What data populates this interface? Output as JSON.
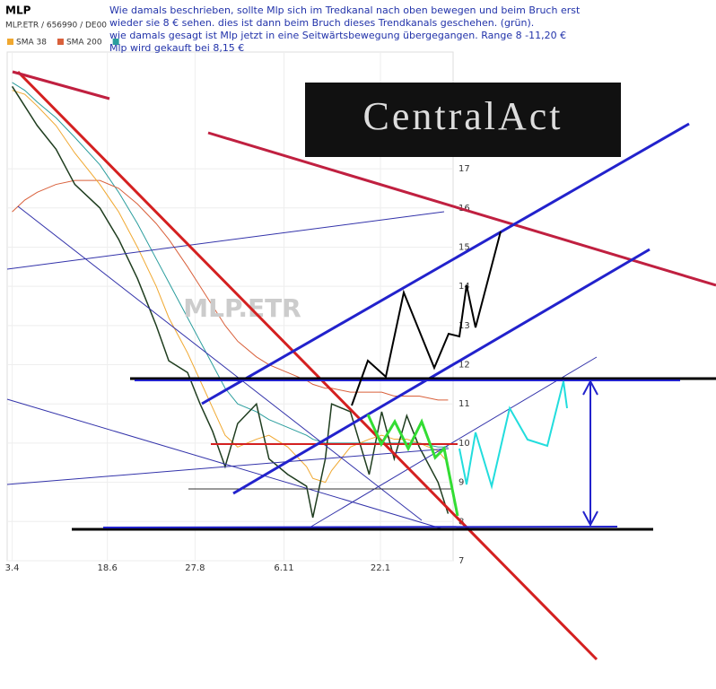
{
  "chart_data": {
    "type": "line",
    "title": "MLP",
    "subtitle": "MLP.ETR / 656990 / DE00",
    "watermark": "MLP.ETR",
    "logo": "CentralAct",
    "annotations": [
      "Wie damals beschrieben, sollte  Mlp sich im Tredkanal nach oben bewegen und beim Bruch erst",
      "wieder sie  8 € sehen. dies ist dann beim Bruch dieses Trendkanals geschehen. (grün).",
      "wie damals gesagt ist Mlp jetzt in eine Seitwärtsbewegung übergegangen. Range 8 -11,20 €",
      "Mlp wird gekauft bei 8,15 €"
    ],
    "x": [
      0,
      10,
      20,
      35,
      50,
      70,
      85,
      100,
      115,
      125,
      140,
      150,
      160,
      170,
      180,
      195,
      205,
      220,
      235,
      240,
      250,
      255,
      270,
      285,
      295,
      305,
      315,
      325,
      340,
      348
    ],
    "series": [
      {
        "color": "#1f3d1f",
        "values": [
          19.1,
          18.6,
          18.1,
          17.5,
          16.6,
          16.0,
          15.2,
          14.2,
          13.0,
          12.1,
          11.8,
          11.0,
          10.3,
          9.4,
          10.5,
          11.0,
          9.6,
          9.2,
          8.9,
          8.1,
          9.6,
          11.0,
          10.8,
          9.2,
          10.8,
          9.6,
          10.7,
          9.9,
          9.0,
          8.2
        ]
      },
      {
        "name": "SMA 38",
        "color": "#f0a830",
        "values": [
          19.0,
          18.9,
          18.6,
          18.1,
          17.4,
          16.6,
          15.9,
          15.0,
          14.0,
          13.2,
          12.3,
          11.6,
          10.9,
          10.2,
          9.9,
          10.1,
          10.2,
          9.9,
          9.4,
          9.1,
          9.0,
          9.3,
          9.9,
          10.1,
          10.2,
          10.1,
          10.1,
          10.0,
          9.8,
          9.5
        ]
      },
      {
        "name": "SMA 200",
        "color": "#d9603b",
        "values": [
          15.9,
          16.2,
          16.4,
          16.6,
          16.7,
          16.7,
          16.5,
          16.1,
          15.6,
          15.2,
          14.5,
          14.0,
          13.5,
          13.0,
          12.6,
          12.2,
          12.0,
          11.8,
          11.6,
          11.5,
          11.4,
          11.4,
          11.3,
          11.3,
          11.3,
          11.2,
          11.2,
          11.2,
          11.1,
          11.1
        ]
      },
      {
        "color": "#2a9d9d",
        "values": [
          19.2,
          19.0,
          18.7,
          18.3,
          17.8,
          17.1,
          16.4,
          15.6,
          14.7,
          14.1,
          13.2,
          12.6,
          12.0,
          11.4,
          11.0,
          10.8,
          10.6,
          10.4,
          10.2,
          10.1,
          10.0,
          10.0,
          10.0,
          10.0,
          10.0,
          10.0,
          10.0,
          10.0,
          9.9,
          9.9
        ]
      }
    ],
    "xlim": [
      -4,
      352
    ],
    "xticks": [
      {
        "value": 0,
        "label": "3.4"
      },
      {
        "value": 76,
        "label": "18.6"
      },
      {
        "value": 146,
        "label": "27.8"
      },
      {
        "value": 217,
        "label": "6.11"
      },
      {
        "value": 294,
        "label": "22.1"
      }
    ],
    "ylim": [
      7,
      20
    ],
    "yticks": [
      7,
      8,
      9,
      10,
      11,
      12,
      13,
      14,
      15,
      16,
      17
    ],
    "grid": true
  }
}
